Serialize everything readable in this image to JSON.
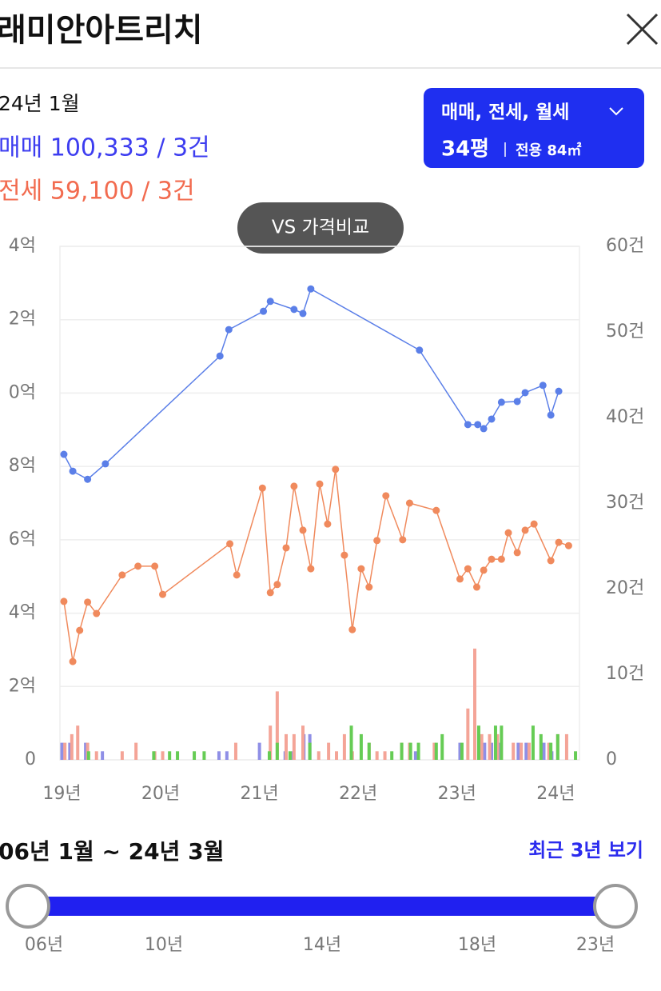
{
  "header": {
    "title": "래미안아트리치"
  },
  "info": {
    "period": "24년 1월",
    "sale": "매매 100,333 / 3건",
    "jeonse": "전세 59,100 / 3건"
  },
  "filter": {
    "types": "매매, 전세, 월세",
    "size": "34평",
    "area": "전용 84㎡"
  },
  "compare_button": "VS 가격비교",
  "chart_data": {
    "type": "line",
    "xlim": [
      2018.98,
      2024.24
    ],
    "xticks": [
      {
        "value": 2019,
        "label": "19년"
      },
      {
        "value": 2020,
        "label": "20년"
      },
      {
        "value": 2021,
        "label": "21년"
      },
      {
        "value": 2022,
        "label": "22년"
      },
      {
        "value": 2023,
        "label": "23년"
      },
      {
        "value": 2024,
        "label": "24년"
      }
    ],
    "ylim": [
      0,
      140000
    ],
    "yticks": [
      0,
      {
        "value": 20000,
        "label": "2억"
      },
      {
        "value": 40000,
        "label": "4억"
      },
      {
        "value": 60000,
        "label": "6억"
      },
      {
        "value": 80000,
        "label": "8억"
      },
      {
        "value": 100000,
        "label": "0억"
      },
      {
        "value": 120000,
        "label": "2억"
      },
      {
        "value": 140000,
        "label": "4억"
      }
    ],
    "y2lim": [
      0,
      60
    ],
    "y2ticks": [
      0,
      {
        "value": 10,
        "label": "10건"
      },
      {
        "value": 20,
        "label": "20건"
      },
      {
        "value": 30,
        "label": "30건"
      },
      {
        "value": 40,
        "label": "40건"
      },
      {
        "value": 50,
        "label": "50건"
      },
      {
        "value": 60,
        "label": "60건"
      }
    ],
    "grid": true,
    "series": [
      {
        "type": "line",
        "color": "#5b7fe8",
        "x": [
          2019.02,
          2019.11,
          2019.26,
          2019.44,
          2020.6,
          2020.69,
          2021.04,
          2021.11,
          2021.35,
          2021.44,
          2021.52,
          2022.62,
          2023.11,
          2023.21,
          2023.27,
          2023.35,
          2023.45,
          2023.61,
          2023.69,
          2023.87,
          2023.95,
          2024.03
        ],
        "values": [
          83300,
          78700,
          76500,
          80700,
          110100,
          117300,
          122300,
          125000,
          122800,
          121700,
          128400,
          111700,
          91400,
          91400,
          90300,
          92900,
          97500,
          97700,
          100100,
          102100,
          94000,
          100500
        ]
      },
      {
        "type": "line",
        "color": "#f08a5d",
        "x": [
          2019.02,
          2019.11,
          2019.18,
          2019.26,
          2019.35,
          2019.61,
          2019.77,
          2019.94,
          2020.02,
          2020.7,
          2020.77,
          2021.03,
          2021.11,
          2021.18,
          2021.27,
          2021.35,
          2021.44,
          2021.52,
          2021.61,
          2021.69,
          2021.77,
          2021.86,
          2021.94,
          2022.03,
          2022.11,
          2022.19,
          2022.28,
          2022.45,
          2022.52,
          2022.79,
          2023.03,
          2023.11,
          2023.2,
          2023.27,
          2023.35,
          2023.45,
          2023.52,
          2023.61,
          2023.69,
          2023.78,
          2023.95,
          2024.03,
          2024.13
        ],
        "values": [
          43200,
          26800,
          35300,
          43000,
          39900,
          50400,
          52800,
          52800,
          45100,
          58900,
          50400,
          74100,
          45600,
          47800,
          57800,
          74600,
          62600,
          52100,
          75200,
          64300,
          79200,
          55800,
          35500,
          52100,
          47100,
          59800,
          72000,
          60000,
          70000,
          68000,
          49300,
          52100,
          47100,
          51700,
          54700,
          54700,
          61900,
          56500,
          62600,
          64300,
          54300,
          59300,
          58400
        ]
      },
      {
        "type": "bar",
        "axis": "y2",
        "color": "#8f8fe6",
        "x": [
          2019.0,
          2019.08,
          2019.24,
          2019.41,
          2020.59,
          2020.67,
          2021.0,
          2021.26,
          2021.34,
          2021.45,
          2021.51,
          2022.58,
          2023.03,
          2023.28,
          2023.35,
          2023.43,
          2023.62,
          2023.7,
          2023.88,
          2023.96
        ],
        "values": [
          2,
          2,
          2,
          1,
          1,
          1,
          2,
          1,
          1,
          3,
          3,
          1,
          2,
          2,
          2,
          2,
          2,
          2,
          2,
          1
        ]
      },
      {
        "type": "bar",
        "axis": "y2",
        "color": "#f4a497",
        "x": [
          2019.03,
          2019.1,
          2019.16,
          2019.26,
          2019.35,
          2019.61,
          2019.75,
          2019.94,
          2020.02,
          2020.76,
          2021.11,
          2021.18,
          2021.27,
          2021.35,
          2021.44,
          2021.6,
          2021.7,
          2021.78,
          2021.86,
          2021.94,
          2022.11,
          2022.19,
          2022.27,
          2022.44,
          2022.52,
          2022.77,
          2023.11,
          2023.18,
          2023.25,
          2023.33,
          2023.41,
          2023.57,
          2023.65,
          2023.73,
          2023.93,
          2024.02,
          2024.11
        ],
        "values": [
          2,
          3,
          4,
          2,
          1,
          1,
          2,
          1,
          1,
          2,
          4,
          8,
          3,
          3,
          4,
          1,
          2,
          1,
          3,
          1,
          2,
          1,
          1,
          2,
          2,
          2,
          6,
          13,
          3,
          3,
          3,
          2,
          2,
          2,
          2,
          3,
          3
        ]
      },
      {
        "type": "bar",
        "axis": "y2",
        "color": "#66cc55",
        "x": [
          2019.27,
          2019.93,
          2020.09,
          2020.17,
          2020.34,
          2020.44,
          2021.1,
          2021.18,
          2021.31,
          2021.51,
          2021.93,
          2022.03,
          2022.11,
          2022.34,
          2022.44,
          2022.53,
          2022.61,
          2022.79,
          2022.85,
          2023.05,
          2023.22,
          2023.39,
          2023.45,
          2023.77,
          2023.85,
          2023.95,
          2024.02,
          2024.2
        ],
        "values": [
          1,
          1,
          1,
          1,
          1,
          1,
          1,
          2,
          1,
          2,
          4,
          3,
          2,
          1,
          2,
          2,
          2,
          2,
          3,
          2,
          4,
          4,
          4,
          4,
          3,
          2,
          3,
          1
        ]
      }
    ]
  },
  "slider": {
    "range": "06년 1월 ~ 24년 3월",
    "recent": "최근 3년 보기",
    "ticks": [
      "06년",
      "10년",
      "14년",
      "18년",
      "23년"
    ]
  }
}
